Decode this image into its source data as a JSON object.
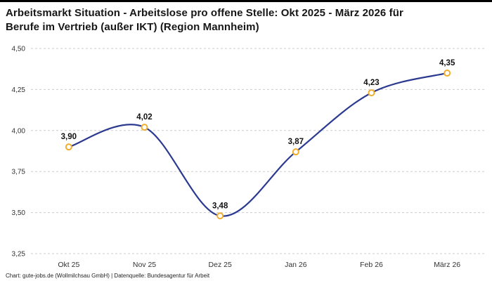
{
  "title": {
    "line1": "Arbeitsmarkt Situation - Arbeitslose pro offene Stelle: Okt 2025 - März 2026 für",
    "line2": "Berufe im Vertrieb (außer IKT) (Region Mannheim)"
  },
  "footer": "Chart: gute-jobs.de (Wollmilchsau GmbH) | Datenquelle: Bundesagentur für Arbeit",
  "chart_data": {
    "type": "line",
    "title": "Arbeitsmarkt Situation - Arbeitslose pro offene Stelle: Okt 2025 - März 2026 für Berufe im Vertrieb (außer IKT) (Region Mannheim)",
    "categories": [
      "Okt 25",
      "Nov 25",
      "Dez 25",
      "Jan 26",
      "Feb 26",
      "März 26"
    ],
    "values": [
      3.9,
      4.02,
      3.48,
      3.87,
      4.23,
      4.35
    ],
    "value_labels": [
      "3,90",
      "4,02",
      "3,48",
      "3,87",
      "4,23",
      "4,35"
    ],
    "y_ticks": [
      3.25,
      3.5,
      3.75,
      4.0,
      4.25,
      4.5
    ],
    "y_tick_labels": [
      "3,25",
      "3,50",
      "3,75",
      "4,00",
      "4,25",
      "4,50"
    ],
    "ylim": [
      3.25,
      4.5
    ],
    "xlabel": "",
    "ylabel": "",
    "grid": "dashed-horizontal",
    "legend": "none",
    "line_color": "#2b3a90",
    "marker_stroke": "#f0ad2e",
    "marker_fill": "#ffffff",
    "gridline_color": "#cccccc",
    "label_color": "#111111"
  }
}
